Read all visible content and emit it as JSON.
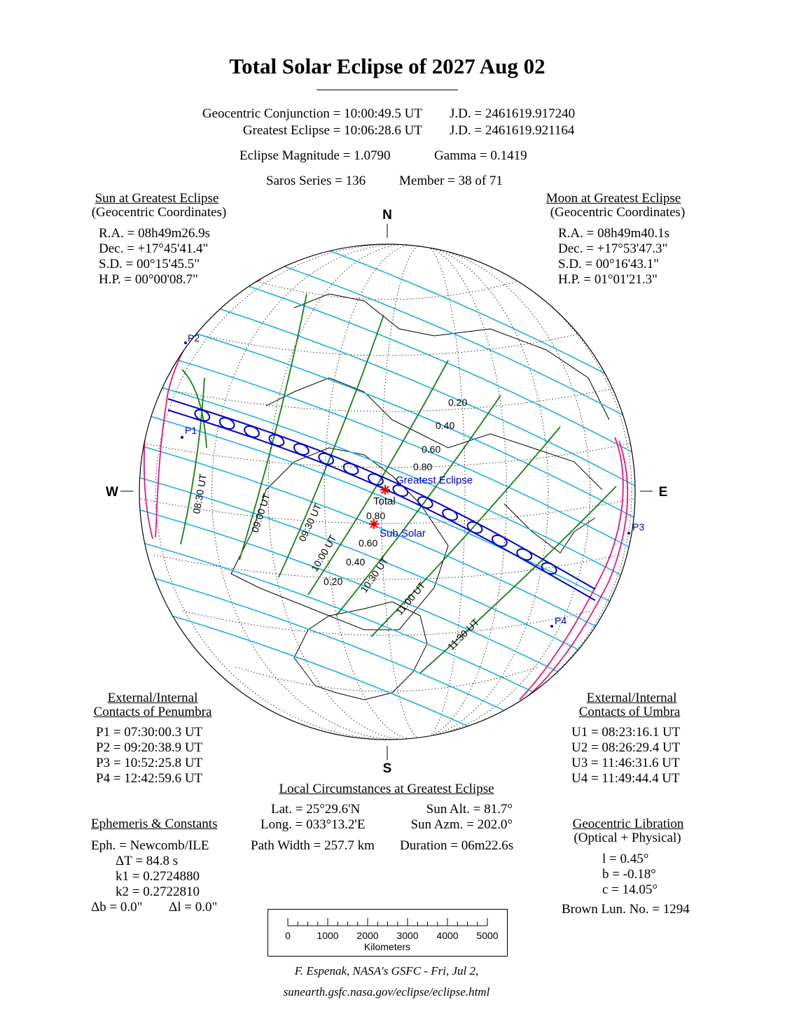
{
  "title": "Total Solar Eclipse of  2027 Aug 02",
  "header": {
    "conjunction": "Geocentric Conjunction =  10:00:49.5 UT",
    "conjunction_jd": "J.D. =  2461619.917240",
    "greatest": "Greatest Eclipse =  10:06:28.6 UT",
    "greatest_jd": "J.D. =  2461619.921164",
    "magnitude": "Eclipse Magnitude =  1.0790",
    "gamma": "Gamma =  0.1419",
    "saros": "Saros Series = 136",
    "member": "Member = 38 of 71"
  },
  "sun": {
    "heading": "Sun at Greatest Eclipse",
    "sub": "(Geocentric Coordinates)",
    "ra": "R.A. = 08h49m26.9s",
    "dec": "Dec. = +17°45'41.4\"",
    "sd": "S.D. =  00°15'45.5\"",
    "hp": "H.P. =  00°00'08.7\""
  },
  "moon": {
    "heading": "Moon at Greatest Eclipse",
    "sub": "(Geocentric Coordinates)",
    "ra": "R.A. = 08h49m40.1s",
    "dec": "Dec. = +17°53'47.3\"",
    "sd": "S.D. =  00°16'43.1\"",
    "hp": "H.P. =  01°01'21.3\""
  },
  "penumbra": {
    "heading1": "External/Internal",
    "heading2": "Contacts of Penumbra",
    "p1": "P1 = 07:30:00.3 UT",
    "p2": "P2 = 09:20:38.9 UT",
    "p3": "P3 = 10:52:25.8 UT",
    "p4": "P4 = 12:42:59.6 UT"
  },
  "umbra": {
    "heading1": "External/Internal",
    "heading2": "Contacts of Umbra",
    "u1": "U1 = 08:23:16.1 UT",
    "u2": "U2 = 08:26:29.4 UT",
    "u3": "U3 = 11:46:31.6 UT",
    "u4": "U4 = 11:49:44.4 UT"
  },
  "local": {
    "heading": "Local Circumstances at Greatest Eclipse",
    "lat": "Lat. =  25°29.6'N",
    "long": "Long. = 033°13.2'E",
    "sun_alt": "Sun Alt. =   81.7°",
    "sun_azm": "Sun Azm. = 202.0°",
    "path_width": "Path Width = 257.7 km",
    "duration": "Duration =  06m22.6s"
  },
  "ephemeris": {
    "heading": "Ephemeris & Constants",
    "eph": "Eph. = Newcomb/ILE",
    "dt": "ΔT =     84.8 s",
    "k1": "k1 = 0.2724880",
    "k2": "k2 = 0.2722810",
    "db": "Δb =   0.0\"",
    "dl": "Δl =   0.0\""
  },
  "libration": {
    "heading": "Geocentric Libration",
    "sub": "(Optical + Physical)",
    "l": "l =    0.45°",
    "b": "b =  -0.18°",
    "c": "c =  14.05°",
    "brown": "Brown Lun. No. = 1294"
  },
  "map": {
    "compass": {
      "n": "N",
      "s": "S",
      "e": "E",
      "w": "W"
    },
    "contacts": {
      "p1": "P1",
      "p2": "P2",
      "p3": "P3",
      "p4": "P4"
    },
    "greatest_label": "Greatest Eclipse",
    "total_label": "Total",
    "subsolar_label": "Sub Solar",
    "magnitude_labels": [
      "0.20",
      "0.40",
      "0.60",
      "0.80"
    ],
    "time_labels": [
      "08:30 UT",
      "09:00 UT",
      "09:30 UT",
      "10:00 UT",
      "10:30 UT",
      "11:00 UT",
      "11:30 UT"
    ],
    "colors": {
      "magnitude": "#1ab0e8",
      "time": "#138013",
      "path": "#0000cc",
      "limits": "#e8157f",
      "marker": "#ee0000"
    }
  },
  "scale": {
    "ticks": [
      "0",
      "1000",
      "2000",
      "3000",
      "4000",
      "5000"
    ],
    "unit": "Kilometers"
  },
  "footer": {
    "credit": "F. Espenak, NASA's GSFC - Fri, Jul 2,",
    "url": "sunearth.gsfc.nasa.gov/eclipse/eclipse.html"
  }
}
